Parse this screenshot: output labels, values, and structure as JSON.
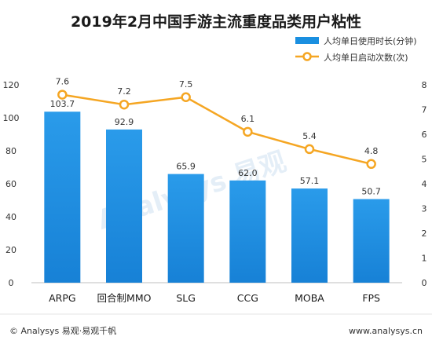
{
  "chart_data": {
    "type": "bar",
    "title": "2019年2月中国手游主流重度品类用户粘性",
    "categories": [
      "ARPG",
      "回合制MMO",
      "SLG",
      "CCG",
      "MOBA",
      "FPS"
    ],
    "series": [
      {
        "name": "人均单日使用时长(分钟)",
        "type": "bar",
        "axis": "left",
        "values": [
          103.7,
          92.9,
          65.9,
          62.0,
          57.1,
          50.7
        ],
        "labels": [
          "103.7",
          "92.9",
          "65.9",
          "62.0",
          "57.1",
          "50.7"
        ]
      },
      {
        "name": "人均单日启动次数(次)",
        "type": "line",
        "axis": "right",
        "values": [
          7.6,
          7.2,
          7.5,
          6.1,
          5.4,
          4.8
        ],
        "labels": [
          "7.6",
          "7.2",
          "7.5",
          "6.1",
          "5.4",
          "4.8"
        ]
      }
    ],
    "ylim_left": [
      0,
      120
    ],
    "yticks_left": [
      "0",
      "20",
      "40",
      "60",
      "80",
      "100",
      "120"
    ],
    "ylim_right": [
      0,
      8
    ],
    "yticks_right": [
      "0",
      "1",
      "2",
      "3",
      "4",
      "5",
      "6",
      "7",
      "8"
    ],
    "grid": false,
    "legend_position": "top-right",
    "colors": {
      "bar": "#1a8fe0",
      "bar_top": "#3aa6ee",
      "line": "#f5a623",
      "marker_fill": "#ffffff"
    }
  },
  "footer": {
    "left": "© Analysys 易观·易观千帆",
    "right": "www.analysys.cn"
  },
  "watermark": {
    "text": "Analysys 易观"
  }
}
